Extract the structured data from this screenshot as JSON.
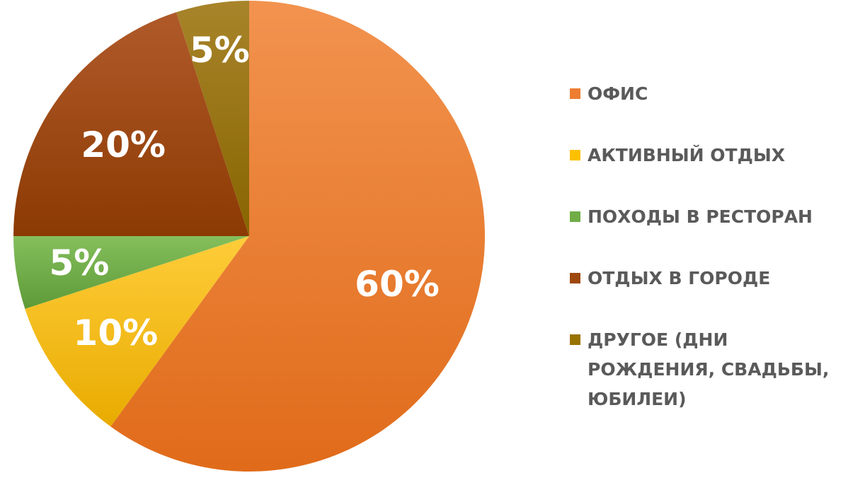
{
  "chart_data": {
    "type": "pie",
    "title": "",
    "start_angle_deg": 0,
    "direction": "clockwise",
    "legend_position": "right",
    "slices": [
      {
        "name": "ОФИС",
        "value": 60,
        "label": "60%",
        "color": "#ed7d31",
        "color_light": "#f2934f",
        "color_dark": "#e06b1a"
      },
      {
        "name": "АКТИВНЫЙ ОТДЫХ",
        "value": 10,
        "label": "10%",
        "color": "#ffc000",
        "color_light": "#ffcd3a",
        "color_dark": "#e8ab00"
      },
      {
        "name": "ПОХОДЫ В РЕСТОРАН",
        "value": 5,
        "label": "5%",
        "color": "#70ad47",
        "color_light": "#84bf5c",
        "color_dark": "#5e9a38"
      },
      {
        "name": "ОТДЫХ В ГОРОДЕ",
        "value": 20,
        "label": "20%",
        "color": "#9e480e",
        "color_light": "#b05a2a",
        "color_dark": "#8c3a03"
      },
      {
        "name": "ДРУГОЕ (ДНИ РОЖДЕНИЯ, СВАДЬБЫ, ЮБИЛЕИ)",
        "value": 5,
        "label": "5%",
        "color": "#997300",
        "color_light": "#a8842a",
        "color_dark": "#876500"
      }
    ]
  }
}
